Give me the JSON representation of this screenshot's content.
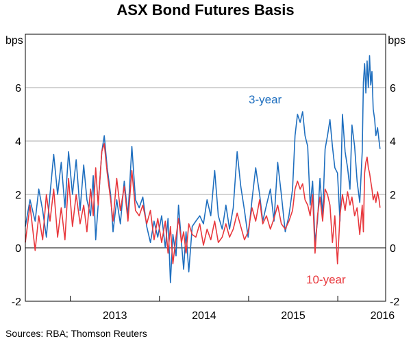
{
  "chart_data": {
    "type": "line",
    "title": "ASX Bond Futures Basis",
    "y_unit_left": "bps",
    "y_unit_right": "bps",
    "ylim": [
      -2,
      8
    ],
    "y_ticks": [
      -2,
      0,
      2,
      4,
      6
    ],
    "x_tick_labels": [
      "2013",
      "2014",
      "2015",
      "2016"
    ],
    "xlim": [
      "2012-07-01",
      "2016-07-15"
    ],
    "grid": true,
    "source": "Sources:   RBA; Thomson Reuters",
    "series": [
      {
        "name": "3-year",
        "color": "#1f6fbf",
        "points": [
          [
            "2012-07-01",
            0.8
          ],
          [
            "2012-07-20",
            1.8
          ],
          [
            "2012-08-10",
            1.0
          ],
          [
            "2012-08-25",
            2.2
          ],
          [
            "2012-09-10",
            1.4
          ],
          [
            "2012-09-25",
            0.4
          ],
          [
            "2012-10-10",
            2.0
          ],
          [
            "2012-10-25",
            3.5
          ],
          [
            "2012-11-10",
            2.0
          ],
          [
            "2012-11-25",
            3.2
          ],
          [
            "2012-12-10",
            1.5
          ],
          [
            "2012-12-25",
            3.6
          ],
          [
            "2013-01-10",
            2.0
          ],
          [
            "2013-01-25",
            3.3
          ],
          [
            "2013-02-10",
            1.4
          ],
          [
            "2013-02-25",
            3.1
          ],
          [
            "2013-03-10",
            1.8
          ],
          [
            "2013-03-25",
            1.2
          ],
          [
            "2013-04-05",
            2.7
          ],
          [
            "2013-04-15",
            0.3
          ],
          [
            "2013-04-25",
            1.6
          ],
          [
            "2013-05-10",
            3.6
          ],
          [
            "2013-05-20",
            4.2
          ],
          [
            "2013-06-01",
            3.0
          ],
          [
            "2013-06-15",
            2.0
          ],
          [
            "2013-06-25",
            0.6
          ],
          [
            "2013-07-10",
            1.8
          ],
          [
            "2013-07-25",
            0.9
          ],
          [
            "2013-08-10",
            2.5
          ],
          [
            "2013-08-25",
            1.2
          ],
          [
            "2013-09-10",
            3.8
          ],
          [
            "2013-09-25",
            1.8
          ],
          [
            "2013-10-10",
            1.5
          ],
          [
            "2013-10-25",
            1.9
          ],
          [
            "2013-11-10",
            0.8
          ],
          [
            "2013-11-25",
            0.2
          ],
          [
            "2013-12-10",
            1.0
          ],
          [
            "2013-12-25",
            0.4
          ],
          [
            "2014-01-10",
            1.2
          ],
          [
            "2014-01-25",
            0.0
          ],
          [
            "2014-02-05",
            1.1
          ],
          [
            "2014-02-15",
            -1.3
          ],
          [
            "2014-02-25",
            0.5
          ],
          [
            "2014-03-10",
            -0.3
          ],
          [
            "2014-03-20",
            1.6
          ],
          [
            "2014-04-01",
            0.2
          ],
          [
            "2014-04-10",
            -0.8
          ],
          [
            "2014-04-20",
            0.6
          ],
          [
            "2014-05-01",
            -0.9
          ],
          [
            "2014-05-15",
            0.8
          ],
          [
            "2014-05-30",
            1.0
          ],
          [
            "2014-06-15",
            1.2
          ],
          [
            "2014-06-30",
            0.9
          ],
          [
            "2014-07-15",
            1.8
          ],
          [
            "2014-07-30",
            1.2
          ],
          [
            "2014-08-15",
            2.9
          ],
          [
            "2014-08-30",
            1.2
          ],
          [
            "2014-09-15",
            0.7
          ],
          [
            "2014-09-30",
            1.6
          ],
          [
            "2014-10-15",
            0.7
          ],
          [
            "2014-10-30",
            1.5
          ],
          [
            "2014-11-15",
            3.6
          ],
          [
            "2014-11-30",
            2.3
          ],
          [
            "2014-12-15",
            1.4
          ],
          [
            "2014-12-30",
            0.4
          ],
          [
            "2015-01-15",
            1.8
          ],
          [
            "2015-01-30",
            3.0
          ],
          [
            "2015-02-15",
            2.0
          ],
          [
            "2015-02-28",
            1.0
          ],
          [
            "2015-03-15",
            1.6
          ],
          [
            "2015-03-31",
            2.2
          ],
          [
            "2015-04-15",
            1.0
          ],
          [
            "2015-04-30",
            3.2
          ],
          [
            "2015-05-15",
            2.0
          ],
          [
            "2015-05-31",
            0.6
          ],
          [
            "2015-06-15",
            1.2
          ],
          [
            "2015-06-30",
            2.2
          ],
          [
            "2015-07-10",
            4.2
          ],
          [
            "2015-07-20",
            5.0
          ],
          [
            "2015-07-31",
            4.7
          ],
          [
            "2015-08-10",
            5.1
          ],
          [
            "2015-08-20",
            4.2
          ],
          [
            "2015-08-31",
            3.8
          ],
          [
            "2015-09-10",
            1.6
          ],
          [
            "2015-09-20",
            2.5
          ],
          [
            "2015-09-30",
            0.2
          ],
          [
            "2015-10-10",
            1.0
          ],
          [
            "2015-10-20",
            2.6
          ],
          [
            "2015-10-31",
            1.2
          ],
          [
            "2015-11-10",
            3.7
          ],
          [
            "2015-11-20",
            4.2
          ],
          [
            "2015-11-30",
            4.8
          ],
          [
            "2015-12-10",
            3.8
          ],
          [
            "2015-12-20",
            3.0
          ],
          [
            "2015-12-31",
            2.8
          ],
          [
            "2016-01-10",
            1.0
          ],
          [
            "2016-01-20",
            5.0
          ],
          [
            "2016-01-31",
            3.6
          ],
          [
            "2016-02-10",
            3.0
          ],
          [
            "2016-02-20",
            2.2
          ],
          [
            "2016-02-28",
            4.6
          ],
          [
            "2016-03-10",
            3.8
          ],
          [
            "2016-03-20",
            2.5
          ],
          [
            "2016-03-31",
            1.7
          ],
          [
            "2016-04-10",
            3.6
          ],
          [
            "2016-04-15",
            6.2
          ],
          [
            "2016-04-20",
            6.9
          ],
          [
            "2016-04-25",
            5.8
          ],
          [
            "2016-04-30",
            7.0
          ],
          [
            "2016-05-05",
            6.0
          ],
          [
            "2016-05-10",
            7.2
          ],
          [
            "2016-05-15",
            6.1
          ],
          [
            "2016-05-20",
            6.6
          ],
          [
            "2016-05-25",
            5.2
          ],
          [
            "2016-05-31",
            4.8
          ],
          [
            "2016-06-05",
            4.2
          ],
          [
            "2016-06-12",
            4.5
          ],
          [
            "2016-06-18",
            4.0
          ],
          [
            "2016-06-22",
            3.7
          ]
        ]
      },
      {
        "name": "10-year",
        "color": "#e8383d",
        "points": [
          [
            "2012-07-01",
            0.2
          ],
          [
            "2012-07-20",
            1.6
          ],
          [
            "2012-08-10",
            -0.1
          ],
          [
            "2012-08-25",
            1.2
          ],
          [
            "2012-09-10",
            0.3
          ],
          [
            "2012-09-25",
            2.0
          ],
          [
            "2012-10-10",
            1.0
          ],
          [
            "2012-10-25",
            2.2
          ],
          [
            "2012-11-10",
            0.4
          ],
          [
            "2012-11-25",
            1.5
          ],
          [
            "2012-12-10",
            0.3
          ],
          [
            "2012-12-25",
            2.6
          ],
          [
            "2013-01-10",
            0.8
          ],
          [
            "2013-01-25",
            2.0
          ],
          [
            "2013-02-10",
            0.9
          ],
          [
            "2013-02-25",
            1.6
          ],
          [
            "2013-03-10",
            0.6
          ],
          [
            "2013-03-25",
            2.2
          ],
          [
            "2013-04-05",
            1.2
          ],
          [
            "2013-04-15",
            3.0
          ],
          [
            "2013-04-25",
            1.6
          ],
          [
            "2013-05-10",
            3.6
          ],
          [
            "2013-05-20",
            3.9
          ],
          [
            "2013-06-01",
            2.8
          ],
          [
            "2013-06-15",
            1.8
          ],
          [
            "2013-06-25",
            1.0
          ],
          [
            "2013-07-10",
            2.6
          ],
          [
            "2013-07-25",
            1.4
          ],
          [
            "2013-08-10",
            2.3
          ],
          [
            "2013-08-25",
            1.0
          ],
          [
            "2013-09-10",
            2.9
          ],
          [
            "2013-09-25",
            1.4
          ],
          [
            "2013-10-10",
            1.2
          ],
          [
            "2013-10-25",
            1.6
          ],
          [
            "2013-11-10",
            0.9
          ],
          [
            "2013-11-25",
            1.4
          ],
          [
            "2013-12-10",
            0.3
          ],
          [
            "2013-12-25",
            1.1
          ],
          [
            "2014-01-10",
            0.2
          ],
          [
            "2014-01-25",
            1.0
          ],
          [
            "2014-02-05",
            -0.2
          ],
          [
            "2014-02-15",
            0.8
          ],
          [
            "2014-02-25",
            -0.6
          ],
          [
            "2014-03-10",
            0.4
          ],
          [
            "2014-03-20",
            1.1
          ],
          [
            "2014-04-01",
            0.2
          ],
          [
            "2014-04-10",
            0.6
          ],
          [
            "2014-04-20",
            -0.2
          ],
          [
            "2014-05-01",
            0.9
          ],
          [
            "2014-05-15",
            0.5
          ],
          [
            "2014-05-30",
            0.4
          ],
          [
            "2014-06-15",
            0.9
          ],
          [
            "2014-06-30",
            0.1
          ],
          [
            "2014-07-15",
            0.7
          ],
          [
            "2014-07-30",
            0.3
          ],
          [
            "2014-08-15",
            1.0
          ],
          [
            "2014-08-30",
            0.2
          ],
          [
            "2014-09-15",
            0.4
          ],
          [
            "2014-09-30",
            0.9
          ],
          [
            "2014-10-15",
            0.4
          ],
          [
            "2014-10-30",
            0.7
          ],
          [
            "2014-11-15",
            1.3
          ],
          [
            "2014-11-30",
            0.8
          ],
          [
            "2014-12-15",
            0.3
          ],
          [
            "2014-12-30",
            0.6
          ],
          [
            "2015-01-15",
            1.5
          ],
          [
            "2015-01-30",
            1.0
          ],
          [
            "2015-02-15",
            1.8
          ],
          [
            "2015-02-28",
            0.9
          ],
          [
            "2015-03-15",
            1.2
          ],
          [
            "2015-03-31",
            0.7
          ],
          [
            "2015-04-15",
            1.1
          ],
          [
            "2015-04-30",
            1.6
          ],
          [
            "2015-05-15",
            0.9
          ],
          [
            "2015-05-31",
            0.7
          ],
          [
            "2015-06-15",
            1.0
          ],
          [
            "2015-06-30",
            1.4
          ],
          [
            "2015-07-10",
            2.2
          ],
          [
            "2015-07-20",
            2.5
          ],
          [
            "2015-07-31",
            2.2
          ],
          [
            "2015-08-10",
            2.4
          ],
          [
            "2015-08-20",
            1.8
          ],
          [
            "2015-08-31",
            1.6
          ],
          [
            "2015-09-10",
            1.2
          ],
          [
            "2015-09-20",
            2.0
          ],
          [
            "2015-09-30",
            -0.2
          ],
          [
            "2015-10-10",
            1.2
          ],
          [
            "2015-10-20",
            1.9
          ],
          [
            "2015-10-31",
            1.0
          ],
          [
            "2015-11-10",
            2.2
          ],
          [
            "2015-11-20",
            2.0
          ],
          [
            "2015-11-30",
            1.6
          ],
          [
            "2015-12-10",
            0.2
          ],
          [
            "2015-12-20",
            1.2
          ],
          [
            "2015-12-31",
            -0.6
          ],
          [
            "2016-01-10",
            1.2
          ],
          [
            "2016-01-20",
            2.0
          ],
          [
            "2016-01-31",
            1.4
          ],
          [
            "2016-02-10",
            2.1
          ],
          [
            "2016-02-20",
            1.6
          ],
          [
            "2016-02-28",
            1.9
          ],
          [
            "2016-03-10",
            1.2
          ],
          [
            "2016-03-20",
            1.5
          ],
          [
            "2016-03-31",
            0.5
          ],
          [
            "2016-04-10",
            1.6
          ],
          [
            "2016-04-15",
            0.6
          ],
          [
            "2016-04-20",
            2.8
          ],
          [
            "2016-04-25",
            3.2
          ],
          [
            "2016-04-30",
            3.4
          ],
          [
            "2016-05-05",
            3.0
          ],
          [
            "2016-05-10",
            2.8
          ],
          [
            "2016-05-15",
            2.5
          ],
          [
            "2016-05-20",
            2.2
          ],
          [
            "2016-05-25",
            1.8
          ],
          [
            "2016-05-31",
            2.0
          ],
          [
            "2016-06-05",
            1.7
          ],
          [
            "2016-06-12",
            2.1
          ],
          [
            "2016-06-18",
            1.8
          ],
          [
            "2016-06-22",
            1.5
          ]
        ]
      }
    ]
  }
}
